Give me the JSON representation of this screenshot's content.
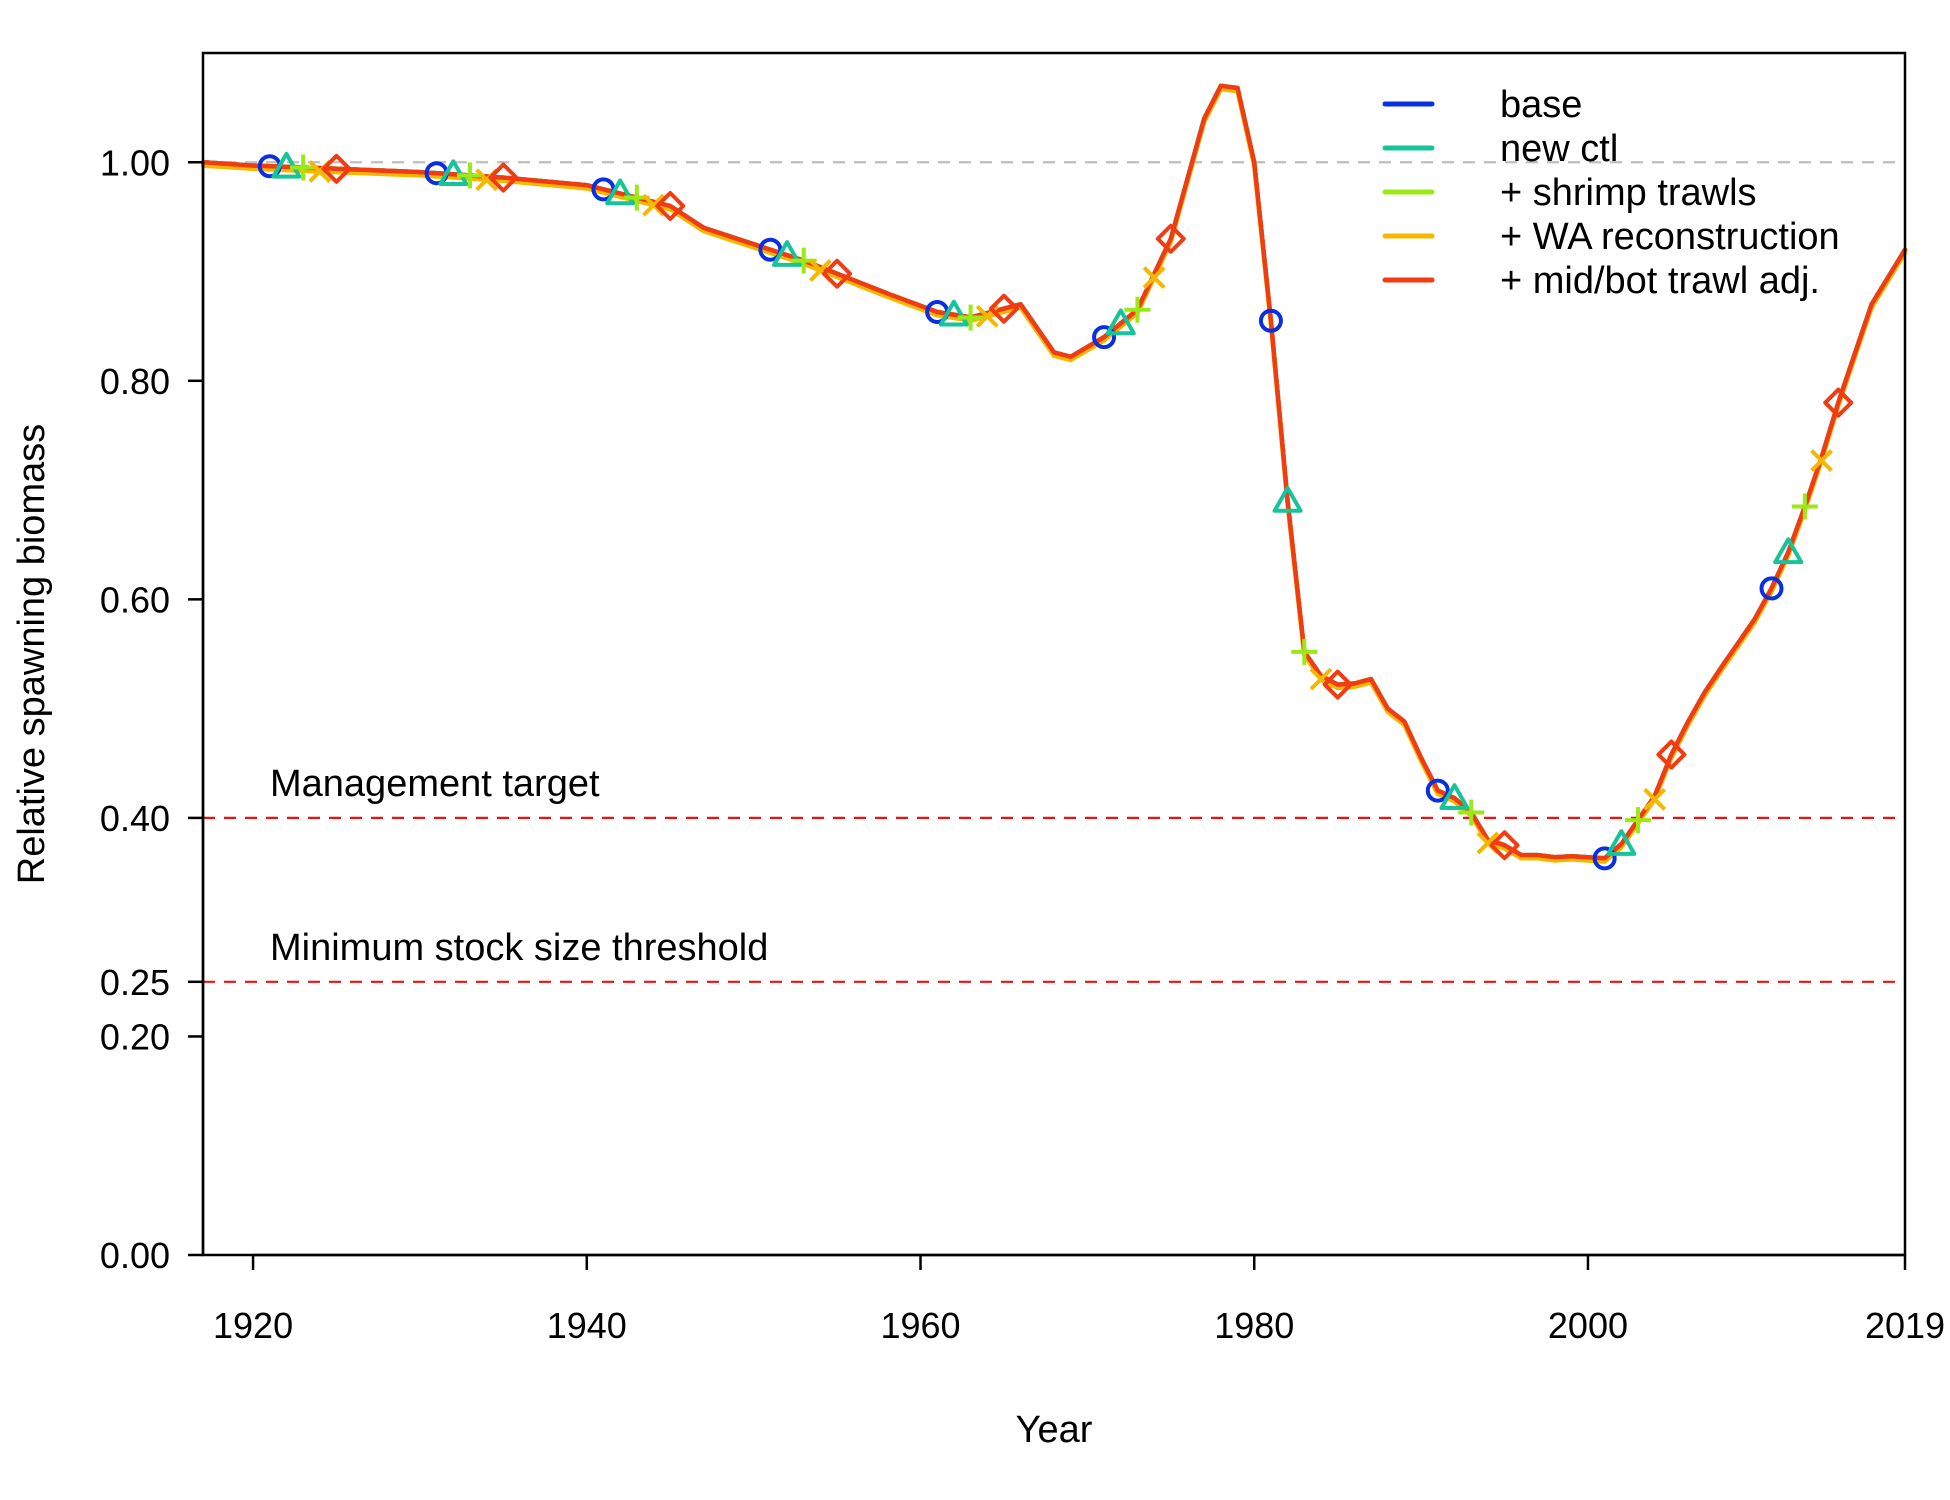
{
  "chart_data": {
    "type": "line",
    "title": "",
    "xlabel": "Year",
    "ylabel": "Relative spawning biomass",
    "xlim": [
      1917,
      2019
    ],
    "ylim": [
      0,
      1.1
    ],
    "x_ticks": [
      1920,
      1940,
      1960,
      1980,
      2000,
      2019
    ],
    "y_ticks": [
      0,
      0.2,
      0.25,
      0.4,
      0.6,
      0.8,
      1.0
    ],
    "x_tick_labels": [
      "1920",
      "1940",
      "1960",
      "1980",
      "2000",
      "2019"
    ],
    "y_tick_labels": [
      "0.00",
      "0.20",
      "0.25",
      "0.40",
      "0.60",
      "0.80",
      "1.00"
    ],
    "legend_position": "top-right",
    "reference_lines": [
      {
        "value": 1.0,
        "label": "",
        "color": "#bfbfbf"
      },
      {
        "value": 0.4,
        "label": "Management target",
        "color": "#ee1111"
      },
      {
        "value": 0.25,
        "label": "Minimum stock size threshold",
        "color": "#ee1111"
      }
    ],
    "base_curve": [
      [
        1917,
        1.0
      ],
      [
        1920,
        0.997
      ],
      [
        1925,
        0.994
      ],
      [
        1930,
        0.991
      ],
      [
        1935,
        0.986
      ],
      [
        1940,
        0.979
      ],
      [
        1945,
        0.96
      ],
      [
        1947,
        0.94
      ],
      [
        1950,
        0.925
      ],
      [
        1953,
        0.91
      ],
      [
        1955,
        0.898
      ],
      [
        1958,
        0.88
      ],
      [
        1961,
        0.863
      ],
      [
        1963,
        0.858
      ],
      [
        1966,
        0.87
      ],
      [
        1968,
        0.826
      ],
      [
        1969,
        0.822
      ],
      [
        1971,
        0.84
      ],
      [
        1973,
        0.865
      ],
      [
        1975,
        0.93
      ],
      [
        1976,
        0.985
      ],
      [
        1977,
        1.04
      ],
      [
        1978,
        1.07
      ],
      [
        1979,
        1.068
      ],
      [
        1980,
        1.0
      ],
      [
        1981,
        0.855
      ],
      [
        1982,
        0.69
      ],
      [
        1983,
        0.552
      ],
      [
        1984,
        0.53
      ],
      [
        1985,
        0.522
      ],
      [
        1986,
        0.523
      ],
      [
        1987,
        0.527
      ],
      [
        1988,
        0.5
      ],
      [
        1989,
        0.488
      ],
      [
        1990,
        0.455
      ],
      [
        1991,
        0.425
      ],
      [
        1992,
        0.418
      ],
      [
        1993,
        0.405
      ],
      [
        1994,
        0.38
      ],
      [
        1995,
        0.375
      ],
      [
        1996,
        0.366
      ],
      [
        1997,
        0.366
      ],
      [
        1998,
        0.364
      ],
      [
        1999,
        0.365
      ],
      [
        2000,
        0.364
      ],
      [
        2001,
        0.363
      ],
      [
        2002,
        0.376
      ],
      [
        2003,
        0.398
      ],
      [
        2004,
        0.42
      ],
      [
        2005,
        0.458
      ],
      [
        2006,
        0.488
      ],
      [
        2007,
        0.515
      ],
      [
        2008,
        0.538
      ],
      [
        2009,
        0.56
      ],
      [
        2010,
        0.582
      ],
      [
        2011,
        0.61
      ],
      [
        2012,
        0.643
      ],
      [
        2013,
        0.685
      ],
      [
        2014,
        0.73
      ],
      [
        2015,
        0.78
      ],
      [
        2016,
        0.825
      ],
      [
        2017,
        0.87
      ],
      [
        2018,
        0.895
      ],
      [
        2019,
        0.92
      ]
    ],
    "series": [
      {
        "name": "base",
        "color": "#0a2fe0",
        "marker": "circle",
        "offset": 0.0,
        "marker_years": [
          1921,
          1931,
          1941,
          1951,
          1961,
          1971,
          1981,
          1991,
          2001,
          2011
        ]
      },
      {
        "name": "new ctl",
        "color": "#17c49a",
        "marker": "triangle",
        "offset": 0.0,
        "marker_years": [
          1922,
          1932,
          1942,
          1952,
          1962,
          1972,
          1982,
          1992,
          2002,
          2012
        ]
      },
      {
        "name": "+ shrimp trawls",
        "color": "#9bea16",
        "marker": "plus",
        "offset": 0.0,
        "marker_years": [
          1923,
          1933,
          1943,
          1953,
          1963,
          1973,
          1983,
          1993,
          2003,
          2013
        ]
      },
      {
        "name": "+ WA reconstruction",
        "color": "#f5b800",
        "marker": "x",
        "offset": -0.003,
        "marker_years": [
          1924,
          1934,
          1944,
          1954,
          1964,
          1974,
          1984,
          1994,
          2004,
          2014
        ]
      },
      {
        "name": "+ mid/bot trawl adj.",
        "color": "#f13c13",
        "marker": "diamond",
        "offset": 0.0,
        "marker_years": [
          1925,
          1935,
          1945,
          1955,
          1965,
          1975,
          1985,
          1995,
          2005,
          2015
        ]
      }
    ]
  }
}
